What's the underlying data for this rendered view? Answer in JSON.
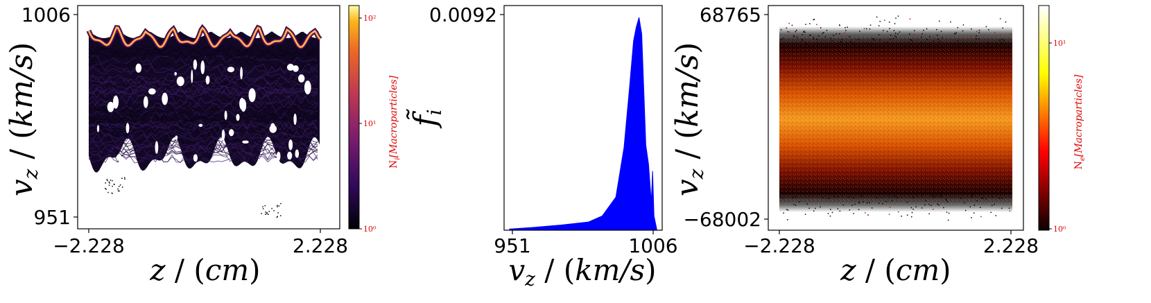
{
  "chart_data": [
    {
      "type": "heatmap",
      "xlabel": "z / (cm)",
      "ylabel": "v_z / (km/s)",
      "x_ticks": [
        "−2.228",
        "2.228"
      ],
      "y_ticks": [
        "1006",
        "951"
      ],
      "xlim": [
        -2.228,
        2.228
      ],
      "ylim": [
        951,
        1006
      ],
      "colormap": "inferno",
      "colors": {
        "high": "#fcffa4",
        "mid": "#dd513a",
        "low": "#000004"
      },
      "colorbar": {
        "label": "N_i [Macroparticles]",
        "scale": "log",
        "ticks": [
          "10⁰",
          "10¹",
          "10²"
        ],
        "range": [
          1,
          150
        ]
      }
    },
    {
      "type": "area",
      "xlabel": "v_z / (km/s)",
      "ylabel": "f̃_i",
      "x_ticks": [
        "951",
        "1006"
      ],
      "y_ticks": [
        "0.0092"
      ],
      "xlim": [
        949,
        1007
      ],
      "ylim": [
        0,
        0.0095
      ],
      "color": "#0000ff",
      "x": [
        951,
        960,
        970,
        980,
        985,
        990,
        993,
        995,
        996.5,
        997.5,
        998.5,
        999.5,
        1000.5,
        1001,
        1002,
        1003,
        1003.5,
        1004,
        1005
      ],
      "y": [
        5e-05,
        0.00012,
        0.00022,
        0.00035,
        0.0006,
        0.0014,
        0.0035,
        0.006,
        0.008,
        0.0086,
        0.009,
        0.0083,
        0.0052,
        0.0036,
        0.0028,
        0.0012,
        0.0025,
        0.0006,
        5e-05
      ]
    },
    {
      "type": "heatmap",
      "xlabel": "z / (cm)",
      "ylabel": "v_z / (km/s)",
      "x_ticks": [
        "−2.228",
        "2.228"
      ],
      "y_ticks": [
        "68765",
        "−68002"
      ],
      "xlim": [
        -2.228,
        2.228
      ],
      "ylim": [
        -68002,
        68765
      ],
      "colormap": "hot",
      "colors": {
        "high": "#ffffff",
        "mid": "#ff9900",
        "low": "#000000"
      },
      "colorbar": {
        "label": "N_e [Macroparticles]",
        "scale": "log",
        "ticks": [
          "10⁰",
          "10¹"
        ],
        "range": [
          1,
          20
        ]
      }
    }
  ]
}
